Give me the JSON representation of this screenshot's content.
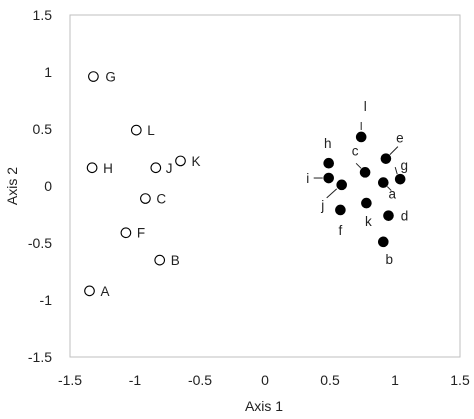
{
  "chart_data": {
    "type": "scatter",
    "xlabel": "Axis 1",
    "ylabel": "Axis 2",
    "xlim": [
      -1.5,
      1.5
    ],
    "ylim": [
      -1.5,
      1.5
    ],
    "xticks": [
      -1.5,
      -1,
      -0.5,
      0,
      0.5,
      1,
      1.5
    ],
    "yticks": [
      -1.5,
      -1,
      -0.5,
      0,
      0.5,
      1,
      1.5
    ],
    "xtick_labels": [
      "-1.5",
      "-1",
      "-0.5",
      "0",
      "0.5",
      "1",
      "1.5"
    ],
    "ytick_labels": [
      "-1.5",
      "-1",
      "-0.5",
      "0",
      "0.5",
      "1",
      "1.5"
    ],
    "grid": false,
    "series": [
      {
        "marker": "open-circle",
        "points": [
          {
            "label": "G",
            "x": -1.32,
            "y": 0.96
          },
          {
            "label": "L",
            "x": -0.99,
            "y": 0.49
          },
          {
            "label": "H",
            "x": -1.33,
            "y": 0.16
          },
          {
            "label": "J",
            "x": -0.84,
            "y": 0.16
          },
          {
            "label": "K",
            "x": -0.65,
            "y": 0.22
          },
          {
            "label": "C",
            "x": -0.92,
            "y": -0.11
          },
          {
            "label": "F",
            "x": -1.07,
            "y": -0.41
          },
          {
            "label": "B",
            "x": -0.81,
            "y": -0.65
          },
          {
            "label": "A",
            "x": -1.35,
            "y": -0.92
          }
        ]
      },
      {
        "marker": "filled-circle",
        "points": [
          {
            "label": "l",
            "x": 0.74,
            "y": 0.43
          },
          {
            "label": "h",
            "x": 0.49,
            "y": 0.2
          },
          {
            "label": "e",
            "x": 0.93,
            "y": 0.24
          },
          {
            "label": "c",
            "x": 0.77,
            "y": 0.12
          },
          {
            "label": "i",
            "x": 0.49,
            "y": 0.07
          },
          {
            "label": "j",
            "x": 0.59,
            "y": 0.01
          },
          {
            "label": "g",
            "x": 1.04,
            "y": 0.06
          },
          {
            "label": "a",
            "x": 0.91,
            "y": 0.03
          },
          {
            "label": "k",
            "x": 0.78,
            "y": -0.15
          },
          {
            "label": "f",
            "x": 0.58,
            "y": -0.21
          },
          {
            "label": "d",
            "x": 0.95,
            "y": -0.26
          },
          {
            "label": "b",
            "x": 0.91,
            "y": -0.49
          }
        ]
      }
    ]
  }
}
